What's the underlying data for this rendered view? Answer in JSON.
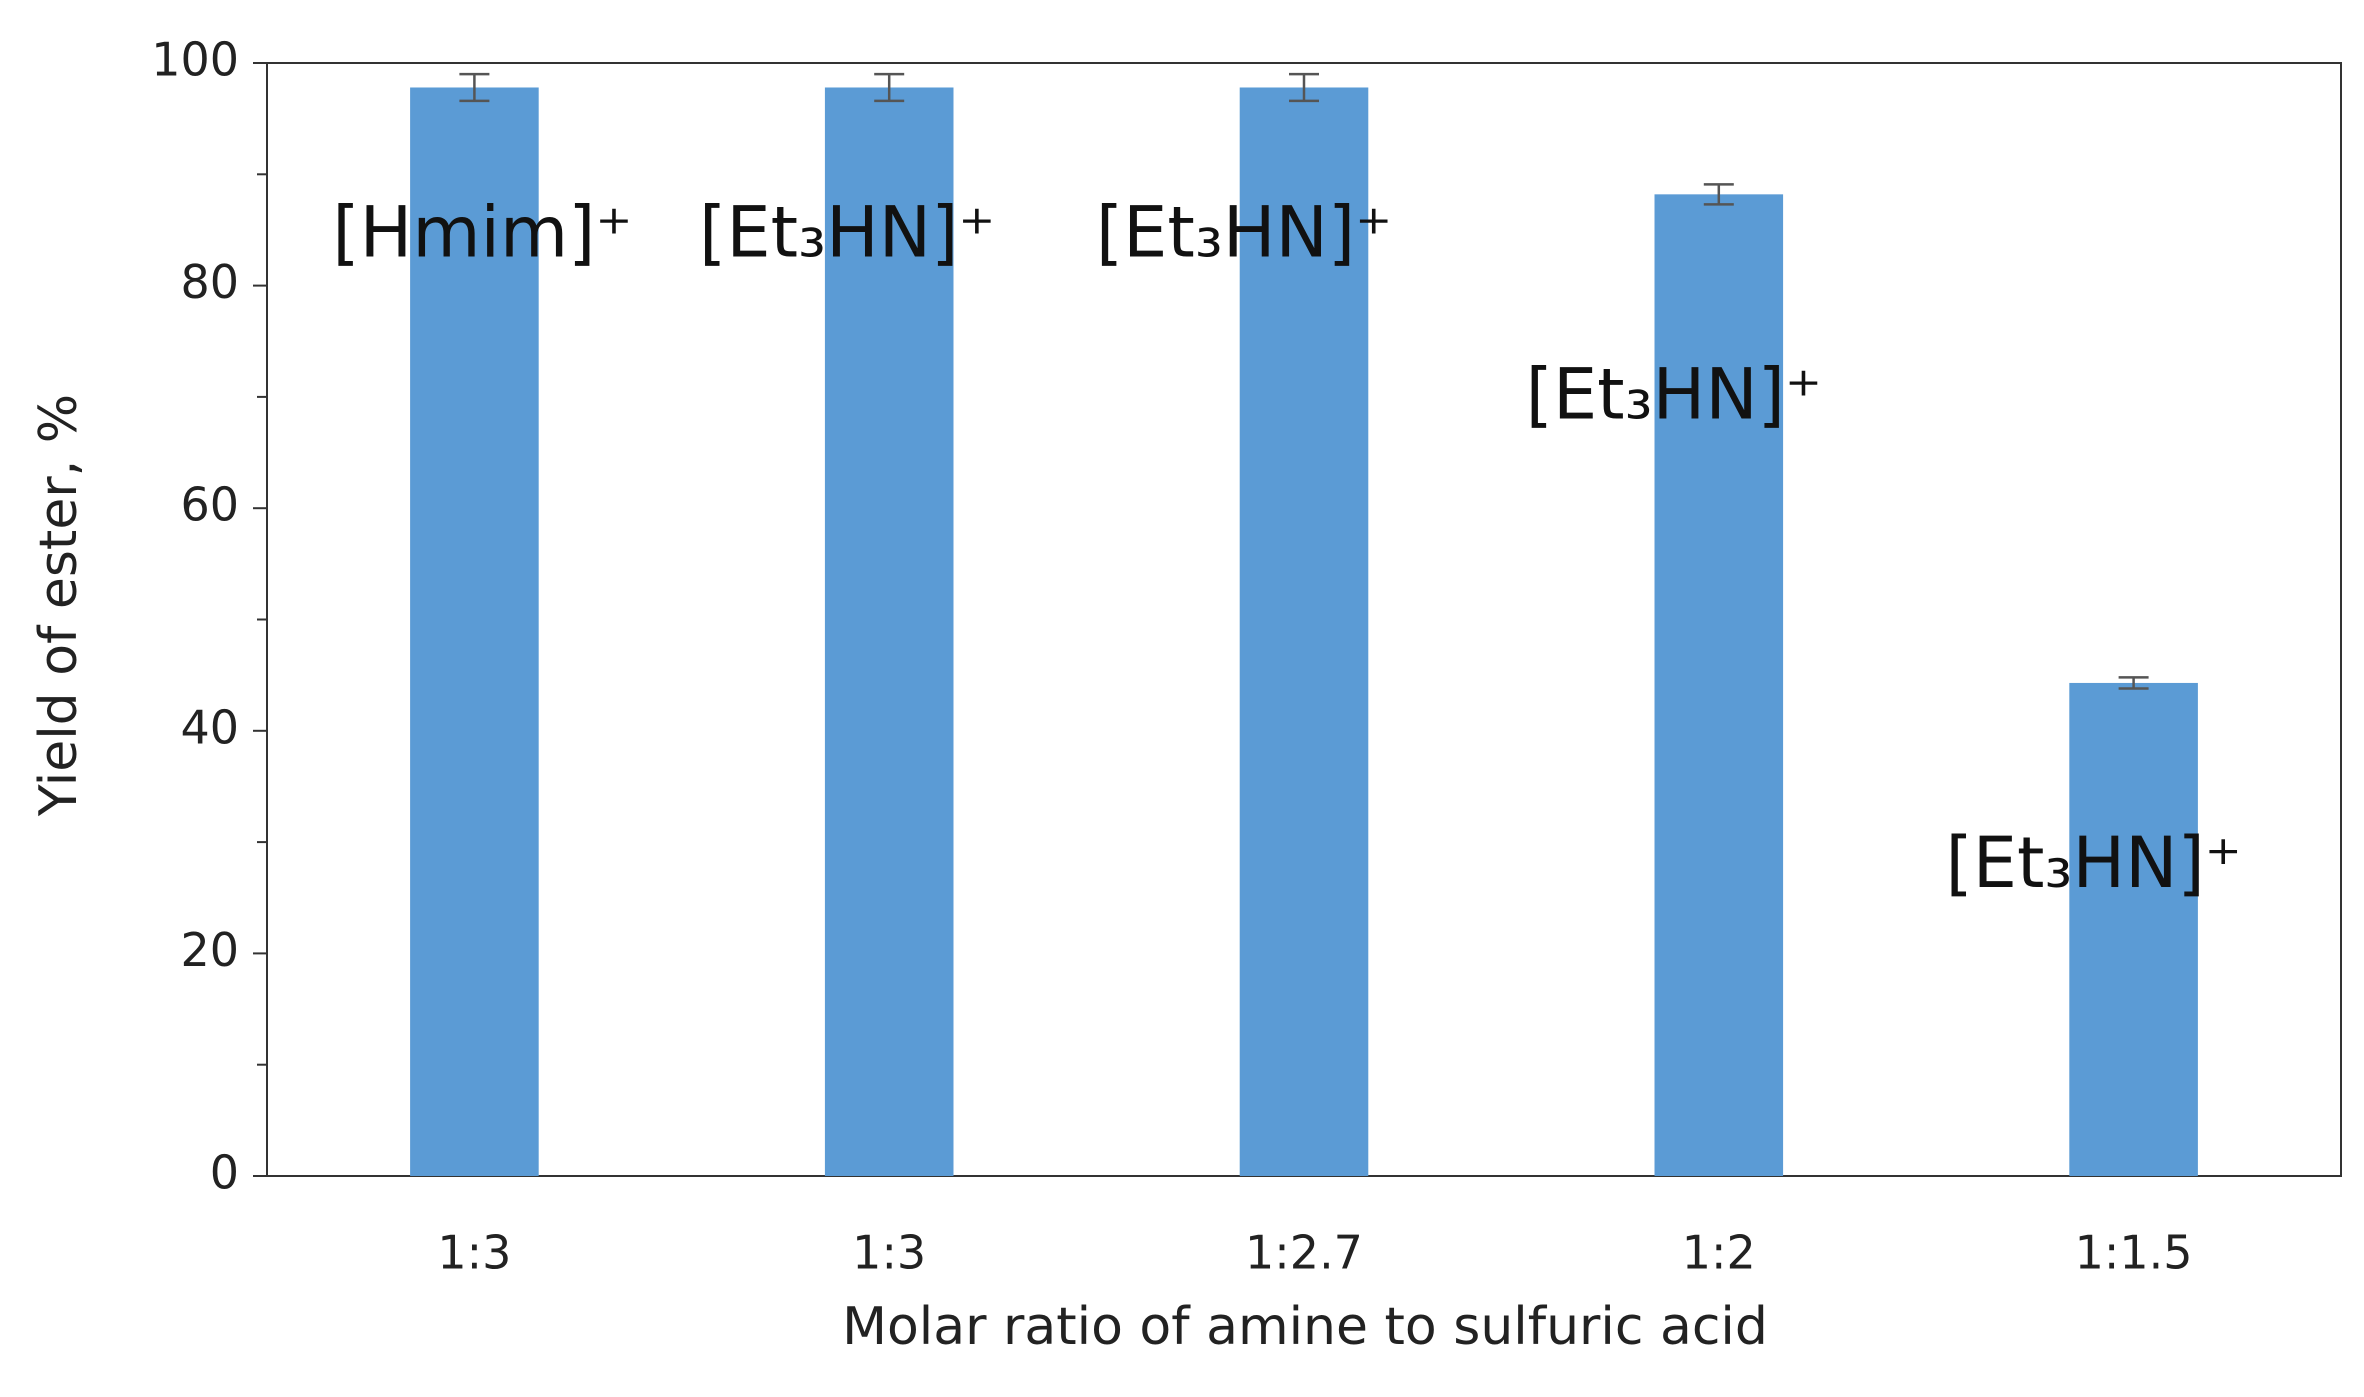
{
  "chart_data": {
    "type": "bar",
    "x_label": "Molar ratio of amine to sulfuric acid",
    "y_label": "Yield of ester, %",
    "categories": [
      "1:3",
      "1:3",
      "1:2.7",
      "1:2",
      "1:1.5"
    ],
    "values": [
      97.8,
      97.8,
      97.8,
      88.2,
      44.3
    ],
    "errors": [
      1.2,
      1.2,
      1.2,
      0.9,
      0.5
    ],
    "annotations": [
      "[Hmim]⁺",
      "[Et₃HN]⁺",
      "[Et₃HN]⁺",
      "[Et₃HN]⁺",
      "[Et₃HN]⁺"
    ],
    "color": "#5b9bd5",
    "error_color": "#555555",
    "ylim": [
      0,
      100
    ],
    "yticks": [
      0,
      20,
      40,
      60,
      80,
      100
    ],
    "minor_yticks": [
      10,
      30,
      50,
      70,
      90
    ],
    "grid": false
  }
}
